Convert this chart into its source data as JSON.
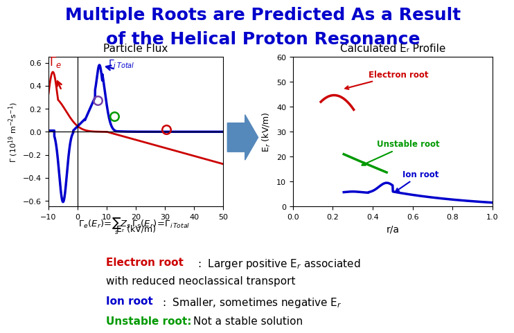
{
  "title_line1": "Multiple Roots are Predicted As a Result",
  "title_line2": "of the Helical Proton Resonance",
  "title_color": "#0000CC",
  "title_fontsize": 18,
  "bg_color": "#FFFFFF",
  "left_plot_title": "Particle Flux",
  "right_plot_title": "Calculated Eᵣ Profile",
  "left_xlabel": "Eᵣ (kV/m)",
  "left_ylabel": "Γ  (10¹⁹ m⁻²s⁻¹)",
  "left_xlim": [
    -10,
    50
  ],
  "left_ylim": [
    -0.65,
    0.65
  ],
  "left_xticks": [
    -10,
    0,
    10,
    20,
    30,
    40,
    50
  ],
  "left_yticks": [
    -0.6,
    -0.4,
    -0.2,
    0.0,
    0.2,
    0.4,
    0.6
  ],
  "right_xlabel": "r/a",
  "right_ylabel": "Eᵣ (kV/m)",
  "right_xlim": [
    0,
    1
  ],
  "right_ylim": [
    0,
    60
  ],
  "right_xticks": [
    0,
    0.2,
    0.4,
    0.6,
    0.8,
    1.0
  ],
  "right_yticks": [
    0,
    10,
    20,
    30,
    40,
    50,
    60
  ],
  "electron_root_color": "#CC0000",
  "ion_root_color": "#0000CC",
  "unstable_root_color": "#009900",
  "arrow_color": "#5588BB"
}
